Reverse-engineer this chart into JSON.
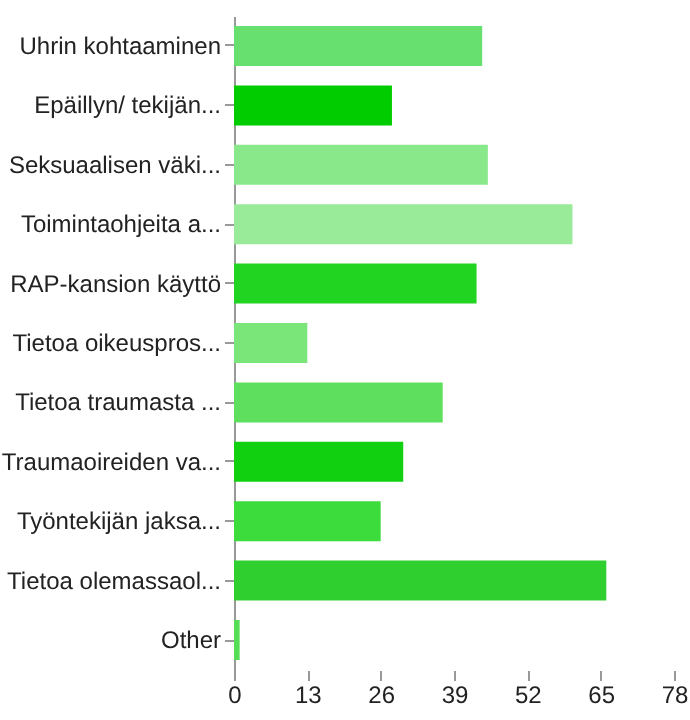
{
  "chart_data": {
    "type": "bar",
    "orientation": "horizontal",
    "categories": [
      "Uhrin kohtaaminen",
      "Epäillyn/ tekijän...",
      "Seksuaalisen väki...",
      "Toimintaohjeita a...",
      "RAP-kansion käyttö",
      "Tietoa oikeuspros...",
      "Tietoa traumasta ...",
      "Traumaoireiden va...",
      "Työntekijän jaksa...",
      "Tietoa olemassaol...",
      "Other"
    ],
    "values": [
      44,
      28,
      45,
      60,
      43,
      13,
      37,
      30,
      26,
      66,
      1
    ],
    "colors": [
      "#68e070",
      "#00cc00",
      "#88e88a",
      "#99ea99",
      "#22d422",
      "#7ae67a",
      "#5ee05e",
      "#10d010",
      "#3cdc3c",
      "#2ecf2e",
      "#55dd55"
    ],
    "xlim": [
      0,
      78
    ],
    "xticks": [
      0,
      13,
      26,
      39,
      52,
      65,
      78
    ],
    "grid": false
  }
}
